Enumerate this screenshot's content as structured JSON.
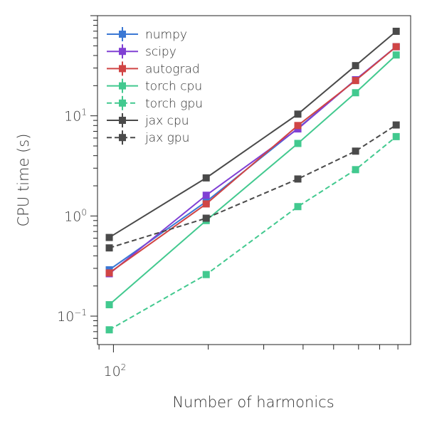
{
  "chart_data": {
    "type": "line",
    "title": "",
    "xlabel": "Number of harmonics",
    "ylabel": "CPU time (s)",
    "xscale": "log",
    "yscale": "log",
    "xlim": [
      89,
      878
    ],
    "ylim": [
      0.052,
      100
    ],
    "xticks": [
      {
        "value": 100,
        "label": "10",
        "exp": "2"
      }
    ],
    "yticks": [
      {
        "value": 10,
        "label": "10",
        "exp": "1"
      },
      {
        "value": 1,
        "label": "10",
        "exp": "0"
      },
      {
        "value": 0.1,
        "label": "10",
        "exp": "−1"
      }
    ],
    "legend_position": "top-left",
    "x": [
      97,
      197,
      385,
      587,
      790
    ],
    "series": [
      {
        "name": "numpy",
        "color": "#3b78d4",
        "dash": false,
        "values": [
          0.29,
          1.39,
          7.5,
          22.9,
          49
        ]
      },
      {
        "name": "scipy",
        "color": "#8040d4",
        "dash": false,
        "values": [
          0.265,
          1.61,
          7.4,
          22.9,
          49
        ]
      },
      {
        "name": "autograd",
        "color": "#d04545",
        "dash": false,
        "values": [
          0.27,
          1.32,
          8.0,
          22.5,
          49
        ]
      },
      {
        "name": "torch cpu",
        "color": "#42c98f",
        "dash": false,
        "values": [
          0.13,
          0.9,
          5.3,
          17,
          40.5
        ]
      },
      {
        "name": "torch gpu",
        "color": "#42c98f",
        "dash": true,
        "values": [
          0.073,
          0.26,
          1.24,
          2.9,
          6.2
        ]
      },
      {
        "name": "jax cpu",
        "color": "#4a4a4a",
        "dash": false,
        "values": [
          0.61,
          2.4,
          10.4,
          31.7,
          69.8
        ]
      },
      {
        "name": "jax gpu",
        "color": "#4a4a4a",
        "dash": true,
        "values": [
          0.48,
          0.95,
          2.34,
          4.44,
          8.1
        ]
      }
    ]
  }
}
